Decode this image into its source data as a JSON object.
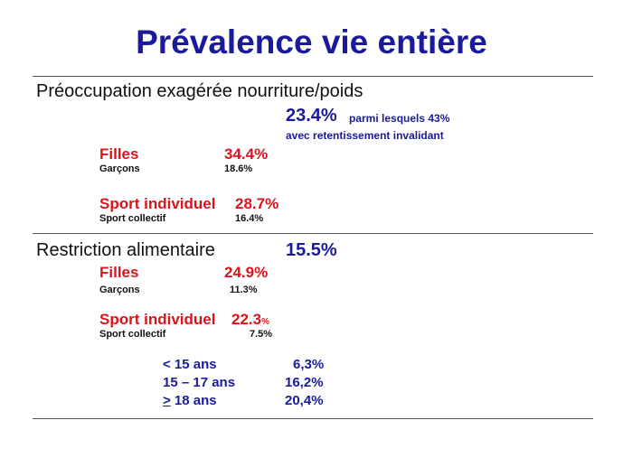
{
  "title": "Prévalence vie entière",
  "section1": {
    "heading": "Préoccupation exagérée nourriture/poids",
    "total": "23.4%",
    "note_line1": "parmi lesquels 43%",
    "note_line2": "avec retentissement invalidant",
    "filles_label": "Filles",
    "filles_value": "34.4%",
    "garcons_label": "Garçons",
    "garcons_value": "18.6%",
    "sport_ind_label": "Sport individuel",
    "sport_ind_value": "28.7%",
    "sport_col_label": "Sport collectif",
    "sport_col_value": "16.4%"
  },
  "section2": {
    "heading": "Restriction alimentaire",
    "total": "15.5%",
    "filles_label": "Filles",
    "filles_value": "24.9%",
    "garcons_label": "Garçons",
    "garcons_value": "11.3%",
    "sport_ind_label": "Sport individuel",
    "sport_ind_value_num": "22.3",
    "sport_ind_value_pct": "%",
    "sport_col_label": "Sport collectif",
    "sport_col_value": "7.5%",
    "age_rows": [
      {
        "label": "< 15 ans",
        "value": "6,3%"
      },
      {
        "label": "15 – 17 ans",
        "value": "16,2%"
      },
      {
        "label_sym": ">",
        "label_rest": " 18 ans",
        "value": "20,4%"
      }
    ]
  }
}
